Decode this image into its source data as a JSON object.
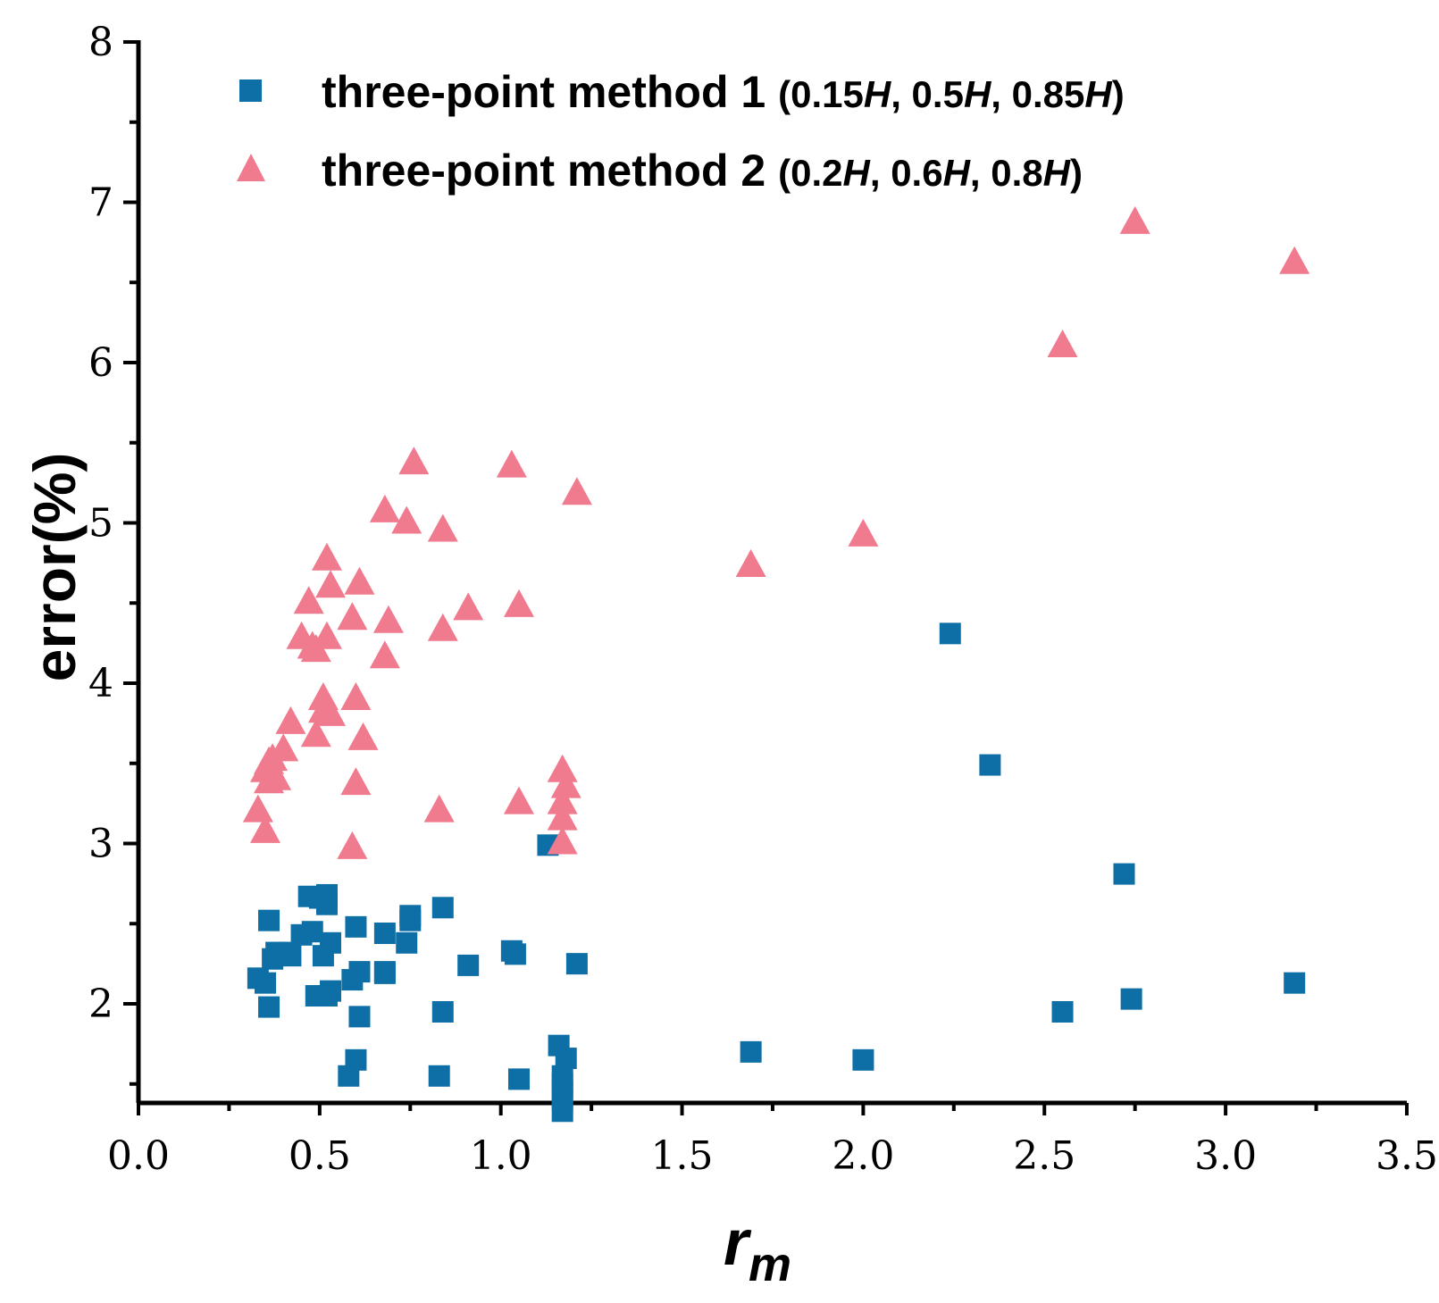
{
  "chart_data": {
    "type": "scatter",
    "title": "",
    "xlabel": "r",
    "xlabel_sub": "m",
    "ylabel": "error(%)",
    "xlim": [
      0.0,
      3.5
    ],
    "ylim": [
      1.4,
      8.0
    ],
    "xticks": [
      "0.0",
      "0.5",
      "1.0",
      "1.5",
      "2.0",
      "2.5",
      "3.0",
      "3.5"
    ],
    "xtick_values": [
      0,
      0.5,
      1.0,
      1.5,
      2.0,
      2.5,
      3.0,
      3.5
    ],
    "yticks": [
      "2",
      "3",
      "4",
      "5",
      "6",
      "7",
      "8"
    ],
    "ytick_values": [
      2,
      3,
      4,
      5,
      6,
      7,
      8
    ],
    "grid": false,
    "legend_position": "top-left",
    "series": [
      {
        "name": "three-point method 1",
        "name_params": [
          "(",
          "0.15",
          "H",
          ", ",
          "0.5",
          "H",
          ", ",
          "0.85",
          "H",
          ")"
        ],
        "marker": "square",
        "color": "#0e6fa6",
        "points": [
          [
            0.33,
            2.16
          ],
          [
            0.35,
            2.13
          ],
          [
            0.36,
            2.52
          ],
          [
            0.36,
            1.98
          ],
          [
            0.37,
            2.28
          ],
          [
            0.38,
            2.32
          ],
          [
            0.4,
            2.32
          ],
          [
            0.42,
            2.3
          ],
          [
            0.45,
            2.43
          ],
          [
            0.47,
            2.67
          ],
          [
            0.48,
            2.45
          ],
          [
            0.49,
            2.05
          ],
          [
            0.5,
            2.66
          ],
          [
            0.51,
            2.3
          ],
          [
            0.52,
            2.68
          ],
          [
            0.52,
            2.62
          ],
          [
            0.52,
            2.05
          ],
          [
            0.53,
            2.08
          ],
          [
            0.53,
            2.38
          ],
          [
            0.58,
            1.55
          ],
          [
            0.59,
            2.15
          ],
          [
            0.6,
            1.65
          ],
          [
            0.6,
            2.48
          ],
          [
            0.61,
            2.2
          ],
          [
            0.61,
            1.92
          ],
          [
            0.68,
            2.19
          ],
          [
            0.68,
            2.44
          ],
          [
            0.68,
            2.2
          ],
          [
            0.74,
            2.38
          ],
          [
            0.75,
            2.52
          ],
          [
            0.75,
            2.55
          ],
          [
            0.83,
            1.55
          ],
          [
            0.84,
            2.6
          ],
          [
            0.84,
            1.95
          ],
          [
            0.91,
            2.24
          ],
          [
            1.03,
            2.33
          ],
          [
            1.04,
            2.31
          ],
          [
            1.05,
            1.53
          ],
          [
            1.13,
            2.99
          ],
          [
            1.16,
            1.74
          ],
          [
            1.17,
            1.55
          ],
          [
            1.17,
            1.5
          ],
          [
            1.17,
            1.45
          ],
          [
            1.17,
            1.4
          ],
          [
            1.17,
            1.33
          ],
          [
            1.18,
            1.66
          ],
          [
            1.21,
            2.25
          ],
          [
            1.69,
            1.7
          ],
          [
            2.0,
            1.65
          ],
          [
            2.24,
            4.31
          ],
          [
            2.35,
            3.49
          ],
          [
            2.55,
            1.95
          ],
          [
            2.72,
            2.81
          ],
          [
            2.74,
            2.03
          ],
          [
            3.19,
            2.13
          ]
        ]
      },
      {
        "name": "three-point method 2",
        "name_params": [
          "(",
          "0.2",
          "H",
          ", ",
          "0.6",
          "H",
          ", ",
          "0.8",
          "H",
          ")"
        ],
        "marker": "triangle",
        "color": "#f07a8e",
        "points": [
          [
            0.33,
            3.2
          ],
          [
            0.35,
            3.07
          ],
          [
            0.35,
            3.45
          ],
          [
            0.36,
            3.38
          ],
          [
            0.36,
            3.5
          ],
          [
            0.37,
            3.52
          ],
          [
            0.38,
            3.4
          ],
          [
            0.4,
            3.58
          ],
          [
            0.42,
            3.75
          ],
          [
            0.45,
            4.28
          ],
          [
            0.47,
            4.5
          ],
          [
            0.48,
            4.22
          ],
          [
            0.49,
            3.67
          ],
          [
            0.49,
            4.2
          ],
          [
            0.51,
            3.9
          ],
          [
            0.51,
            3.82
          ],
          [
            0.52,
            4.28
          ],
          [
            0.52,
            4.77
          ],
          [
            0.53,
            4.6
          ],
          [
            0.53,
            3.8
          ],
          [
            0.59,
            2.97
          ],
          [
            0.59,
            4.4
          ],
          [
            0.6,
            3.37
          ],
          [
            0.6,
            3.9
          ],
          [
            0.61,
            4.62
          ],
          [
            0.62,
            3.65
          ],
          [
            0.68,
            4.16
          ],
          [
            0.68,
            5.07
          ],
          [
            0.69,
            4.38
          ],
          [
            0.74,
            5.0
          ],
          [
            0.76,
            5.37
          ],
          [
            0.83,
            3.2
          ],
          [
            0.84,
            4.33
          ],
          [
            0.84,
            4.95
          ],
          [
            0.91,
            4.46
          ],
          [
            1.03,
            5.35
          ],
          [
            1.05,
            4.48
          ],
          [
            1.05,
            3.25
          ],
          [
            1.17,
            3.0
          ],
          [
            1.17,
            3.15
          ],
          [
            1.17,
            3.25
          ],
          [
            1.17,
            3.45
          ],
          [
            1.18,
            3.35
          ],
          [
            1.21,
            5.18
          ],
          [
            1.69,
            4.73
          ],
          [
            2.0,
            4.92
          ],
          [
            2.55,
            6.1
          ],
          [
            2.75,
            6.87
          ],
          [
            3.19,
            6.62
          ]
        ]
      }
    ]
  }
}
